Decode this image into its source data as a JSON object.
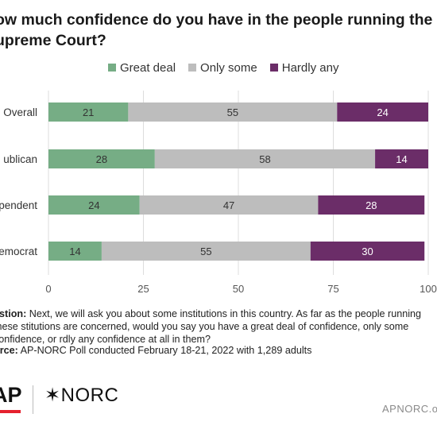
{
  "header": {
    "title": "ow much confidence do you have in the people running the upreme Court?"
  },
  "colors": {
    "great_deal": "#76ad85",
    "only_some": "#bdbdbd",
    "hardly_any": "#6b2d68",
    "gridline": "#dddddd"
  },
  "chart_data": {
    "type": "bar",
    "orientation": "horizontal",
    "stacked": true,
    "categories": [
      "Overall",
      "ublican",
      "pendent",
      "emocrat"
    ],
    "series": [
      {
        "name": "Great deal",
        "values": [
          21,
          28,
          24,
          14
        ]
      },
      {
        "name": "Only some",
        "values": [
          55,
          58,
          47,
          55
        ]
      },
      {
        "name": "Hardly any",
        "values": [
          24,
          14,
          28,
          30
        ]
      }
    ],
    "xlim": [
      0,
      100
    ],
    "xticks": [
      "0",
      "25",
      "50",
      "75",
      "100"
    ],
    "legend_position": "top",
    "grid": true
  },
  "notes": {
    "question_label": "estion:",
    "question_text": "Next, we will ask you about some institutions in this country. As far as the people running these stitutions are concerned, would you say you have a great deal of confidence, only some confidence, or rdly any confidence at all in them?",
    "source_label": "urce:",
    "source_text": "AP-NORC Poll conducted February 18-21, 2022 with 1,289 adults"
  },
  "footer": {
    "ap_logo": "AP",
    "norc_logo": "NORC",
    "norc_mark": "✶",
    "url": "APNORC.org"
  }
}
